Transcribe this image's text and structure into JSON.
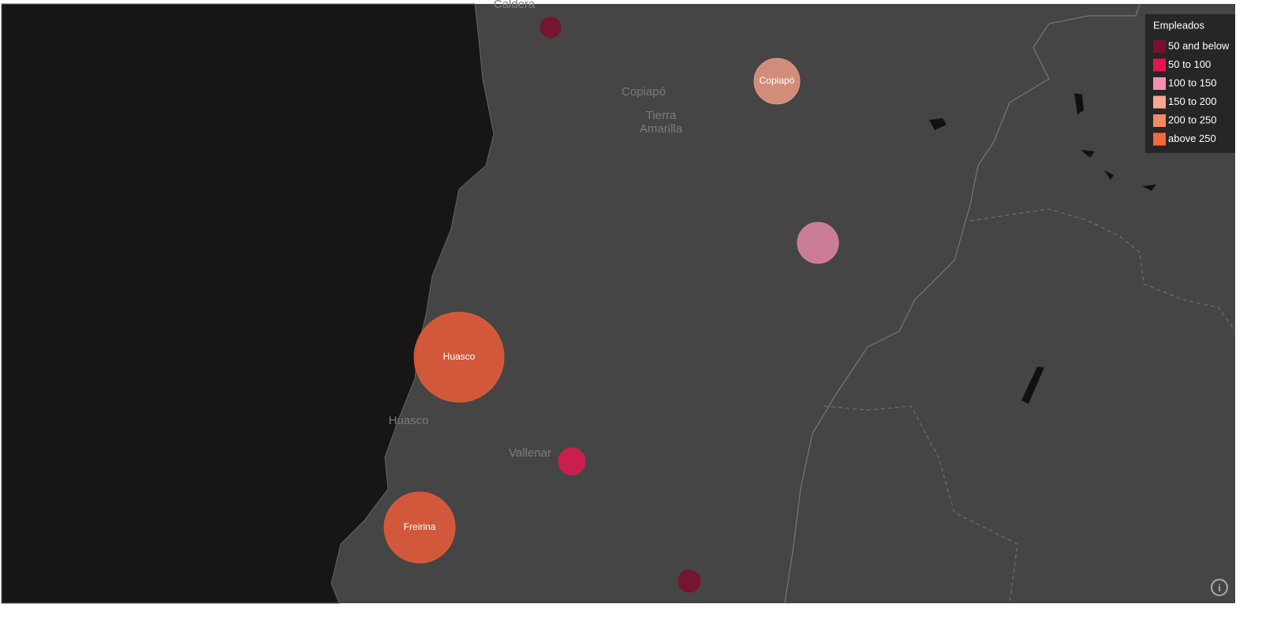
{
  "map": {
    "place_labels": [
      "Caldera",
      "Copiapó",
      "Tierra",
      "Amarilla",
      "Huasco",
      "Vallenar"
    ],
    "bubbles": [
      {
        "color": "#7a0f2e"
      },
      {
        "label": "Copiapó",
        "color": "#e0947f"
      },
      {
        "color": "#d9839f"
      },
      {
        "label": "Huasco",
        "color": "#e05a39"
      },
      {
        "color": "#d81b4f"
      },
      {
        "label": "Freirina",
        "color": "#e05a39"
      },
      {
        "color": "#7a0f2e"
      }
    ],
    "legend": {
      "title": "Empleados",
      "items": [
        {
          "label": "50 and below",
          "color": "#7a0f2e"
        },
        {
          "label": "50 to 100",
          "color": "#e8134f"
        },
        {
          "label": "100 to 150",
          "color": "#f48fb1"
        },
        {
          "label": "150 to 200",
          "color": "#f6a88e"
        },
        {
          "label": "200 to 250",
          "color": "#f48864"
        },
        {
          "label": "above 250",
          "color": "#f26a3f"
        }
      ]
    }
  }
}
